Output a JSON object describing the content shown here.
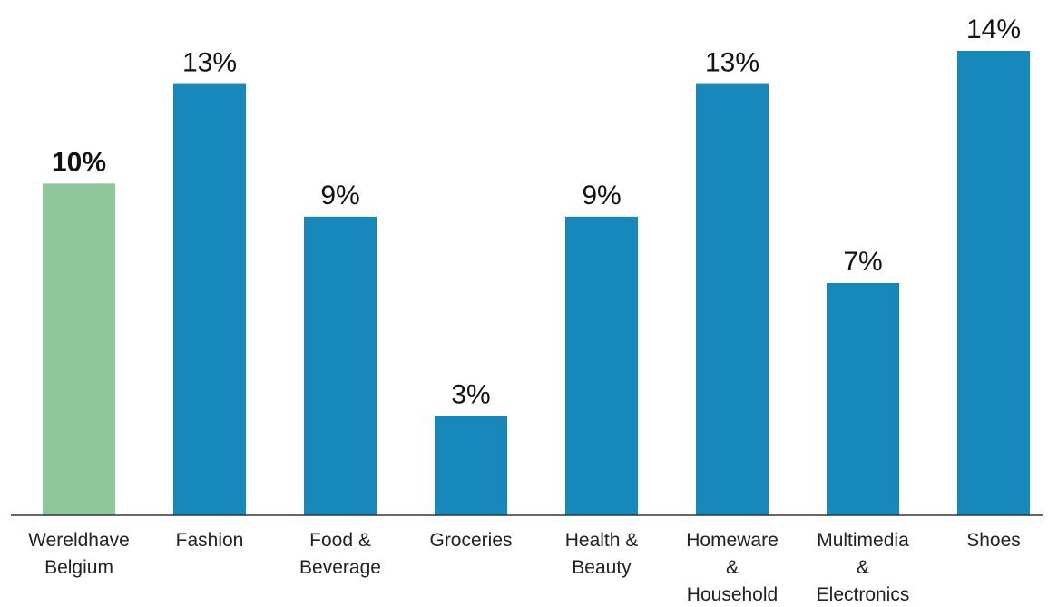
{
  "chart_data": {
    "type": "bar",
    "categories": [
      [
        "Wereldhave",
        "Belgium"
      ],
      [
        "Fashion"
      ],
      [
        "Food &",
        "Beverage"
      ],
      [
        "Groceries"
      ],
      [
        "Health &",
        "Beauty"
      ],
      [
        "Homeware",
        "&",
        "Household"
      ],
      [
        "Multimedia",
        "&",
        "Electronics"
      ],
      [
        "Shoes"
      ]
    ],
    "values": [
      10,
      13,
      9,
      3,
      9,
      13,
      7,
      14
    ],
    "value_labels": [
      "10%",
      "13%",
      "9%",
      "3%",
      "9%",
      "13%",
      "7%",
      "14%"
    ],
    "highlight_index": 0,
    "colors": {
      "highlight": "#8ec89a",
      "bar": "#1688bb",
      "axis": "#333333"
    },
    "title": "",
    "xlabel": "",
    "ylabel": "",
    "ylim": [
      0,
      14
    ],
    "grid": false,
    "legend": "none"
  }
}
